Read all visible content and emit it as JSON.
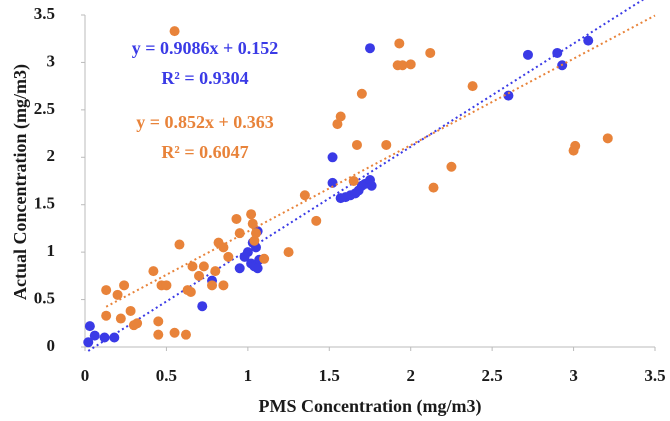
{
  "chart_data": {
    "type": "scatter",
    "x_label": "PMS Concentration  (mg/m3)",
    "y_label": "Actual Concentration  (mg/m3)",
    "xlim": [
      0,
      3.5
    ],
    "ylim": [
      0,
      3.5
    ],
    "xticks": [
      0,
      0.5,
      1,
      1.5,
      2,
      2.5,
      3,
      3.5
    ],
    "yticks": [
      0,
      0.5,
      1,
      1.5,
      2,
      2.5,
      3,
      3.5
    ],
    "series": [
      {
        "color": "#3a3ae6",
        "equation": "y = 0.9086x + 0.152",
        "r2": "R² = 0.9304",
        "x": [
          0.02,
          0.03,
          0.06,
          0.12,
          0.18,
          0.72,
          0.78,
          0.95,
          0.98,
          1.0,
          1.02,
          1.04,
          1.05,
          1.06,
          1.07,
          1.03,
          1.06,
          1.52,
          1.52,
          1.57,
          1.6,
          1.63,
          1.66,
          1.68,
          1.7,
          1.72,
          1.75,
          1.76,
          1.75,
          2.6,
          2.72,
          2.9,
          2.93,
          3.09
        ],
        "values": [
          0.05,
          0.22,
          0.12,
          0.1,
          0.1,
          0.43,
          0.7,
          0.83,
          0.95,
          1.0,
          0.88,
          0.85,
          1.05,
          1.22,
          0.92,
          1.1,
          0.83,
          1.73,
          2.0,
          1.57,
          1.58,
          1.6,
          1.62,
          1.65,
          1.7,
          1.72,
          1.76,
          1.7,
          3.15,
          2.65,
          3.08,
          3.1,
          2.97,
          3.23
        ]
      },
      {
        "color": "#e8833a",
        "equation": "y = 0.852x + 0.363",
        "r2": "R² = 0.6047",
        "x": [
          0.55,
          0.13,
          0.13,
          0.2,
          0.22,
          0.24,
          0.28,
          0.3,
          0.32,
          0.42,
          0.45,
          0.45,
          0.47,
          0.5,
          0.55,
          0.58,
          0.62,
          0.63,
          0.65,
          0.66,
          0.7,
          0.73,
          0.78,
          0.8,
          0.82,
          0.85,
          0.85,
          0.88,
          0.93,
          0.95,
          1.02,
          1.03,
          1.04,
          1.05,
          1.1,
          1.25,
          1.35,
          1.42,
          1.55,
          1.57,
          1.65,
          1.67,
          1.7,
          1.85,
          1.92,
          1.93,
          1.95,
          2.0,
          2.12,
          2.14,
          2.25,
          2.38,
          3.0,
          3.01,
          3.21
        ],
        "values": [
          3.33,
          0.6,
          0.33,
          0.55,
          0.3,
          0.65,
          0.38,
          0.23,
          0.25,
          0.8,
          0.27,
          0.13,
          0.65,
          0.65,
          0.15,
          1.08,
          0.13,
          0.6,
          0.58,
          0.85,
          0.75,
          0.85,
          0.65,
          0.8,
          1.1,
          1.05,
          0.65,
          0.95,
          1.35,
          1.2,
          1.4,
          1.3,
          1.12,
          1.2,
          0.93,
          1.0,
          1.6,
          1.33,
          2.35,
          2.43,
          1.75,
          2.13,
          2.67,
          2.13,
          2.97,
          3.2,
          2.97,
          2.98,
          3.1,
          1.68,
          1.9,
          2.75,
          2.07,
          2.12,
          2.2
        ]
      }
    ]
  }
}
